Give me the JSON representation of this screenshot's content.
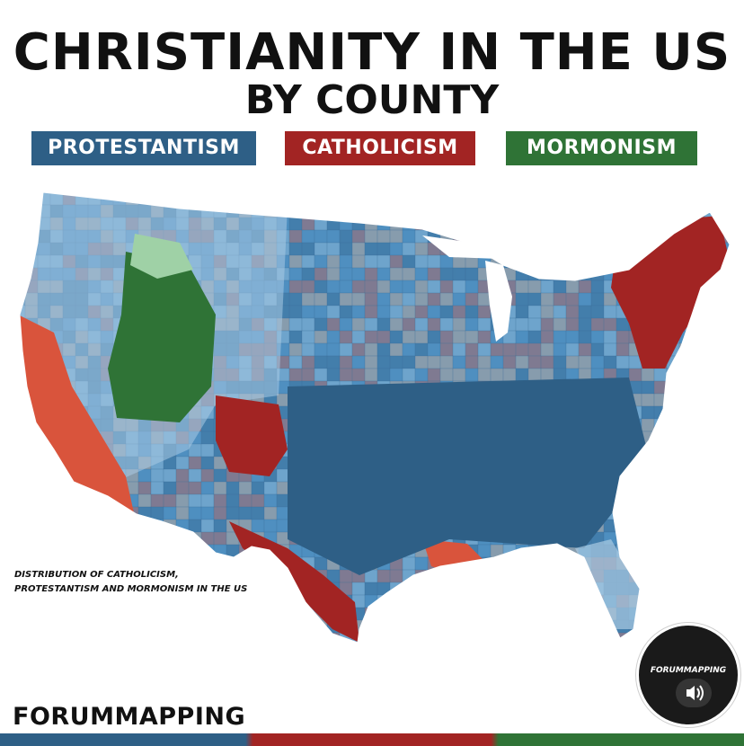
{
  "title": "CHRISTIANITY IN THE US",
  "subtitle": "BY COUNTY",
  "legend": [
    {
      "label": "PROTESTANTISM",
      "color": "#2e5f86"
    },
    {
      "label": "CATHOLICISM",
      "color": "#a22423"
    },
    {
      "label": "MORMONISM",
      "color": "#2f7336"
    }
  ],
  "map_caption_line1": "DISTRIBUTION OF CATHOLICISM,",
  "map_caption_line2": "PROTESTANTISM AND MORMONISM IN THE US",
  "brand": "FORUMMAPPING",
  "badge_text": "FORUMMAPPING",
  "sound_icon": "speaker-icon",
  "colors": {
    "protestant_dark": "#2e5f86",
    "protestant_mid": "#4f8fc0",
    "protestant_light": "#a9cbe3",
    "catholic_dark": "#a22423",
    "catholic_mid": "#d9543c",
    "catholic_light": "#f0b48a",
    "mormon_dark": "#2f7336",
    "mormon_light": "#9fd1a6"
  }
}
